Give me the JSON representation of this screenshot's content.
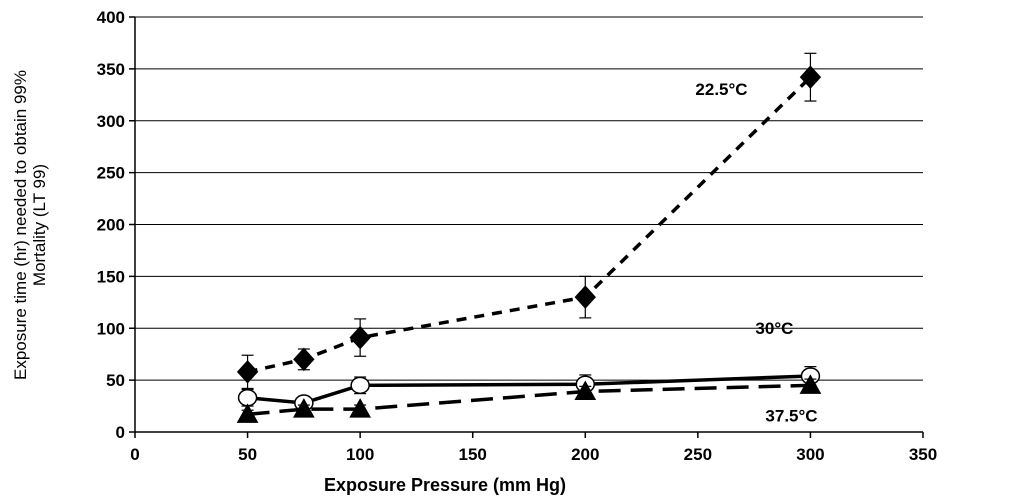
{
  "chart_data": {
    "type": "line",
    "xlabel": "Exposure Pressure (mm Hg)",
    "ylabel_lines": [
      "Exposure time (hr) needed to obtain 99%",
      "Mortality (LT 99)"
    ],
    "xlim": [
      0,
      350
    ],
    "ylim": [
      0,
      400
    ],
    "xticks": [
      0,
      50,
      100,
      150,
      200,
      250,
      300,
      350
    ],
    "yticks": [
      0,
      50,
      100,
      150,
      200,
      250,
      300,
      350,
      400
    ],
    "grid": "horizontal",
    "legend": "none",
    "series": [
      {
        "name": "22.5°C",
        "marker": "diamond",
        "marker_fill": "#000000",
        "line_style": "dashed-short",
        "x": [
          50,
          75,
          100,
          200,
          300
        ],
        "y": [
          58,
          70,
          91,
          130,
          342
        ],
        "err": [
          16,
          10,
          18,
          20,
          23
        ]
      },
      {
        "name": "30°C",
        "marker": "circle",
        "marker_fill": "#ffffff",
        "line_style": "solid",
        "x": [
          50,
          75,
          100,
          200,
          300
        ],
        "y": [
          33,
          28,
          45,
          46,
          54
        ],
        "err": [
          8,
          4,
          8,
          9,
          9
        ]
      },
      {
        "name": "37.5°C",
        "marker": "triangle",
        "marker_fill": "#000000",
        "line_style": "dashed-long",
        "x": [
          50,
          75,
          100,
          200,
          300
        ],
        "y": [
          17,
          22,
          22,
          39,
          45
        ],
        "err": [
          4,
          4,
          4,
          5,
          6
        ]
      }
    ]
  }
}
